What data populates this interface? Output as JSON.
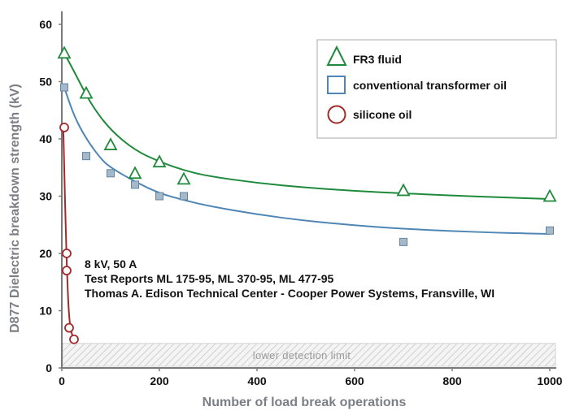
{
  "chart_data": {
    "type": "scatter",
    "xlabel": "Number of load break operations",
    "ylabel": "D877  Dielectric breakdown strength (kV)",
    "xlim": [
      0,
      1000
    ],
    "ylim": [
      0,
      60
    ],
    "x_ticks": [
      0,
      200,
      400,
      600,
      800,
      1000
    ],
    "y_ticks": [
      0,
      10,
      20,
      30,
      40,
      50,
      60
    ],
    "grid": false,
    "legend_position": "top-right",
    "series": [
      {
        "name": "FR3 fluid",
        "marker": "triangle",
        "color": "#1f8a3b",
        "points": [
          [
            5,
            55
          ],
          [
            50,
            48
          ],
          [
            100,
            39
          ],
          [
            150,
            34
          ],
          [
            200,
            36
          ],
          [
            250,
            33
          ],
          [
            700,
            31
          ],
          [
            1000,
            30
          ]
        ],
        "fit": [
          [
            5,
            55
          ],
          [
            30,
            51
          ],
          [
            60,
            46
          ],
          [
            100,
            41.5
          ],
          [
            150,
            38
          ],
          [
            200,
            36
          ],
          [
            250,
            34.5
          ],
          [
            300,
            33.5
          ],
          [
            400,
            32.3
          ],
          [
            500,
            31.5
          ],
          [
            600,
            30.9
          ],
          [
            700,
            30.5
          ],
          [
            800,
            30.1
          ],
          [
            900,
            29.8
          ],
          [
            1000,
            29.5
          ]
        ]
      },
      {
        "name": "conventional transformer oil",
        "marker": "square",
        "color": "#4f86b5",
        "points": [
          [
            5,
            49
          ],
          [
            50,
            37
          ],
          [
            100,
            34
          ],
          [
            150,
            32
          ],
          [
            200,
            30
          ],
          [
            250,
            30
          ],
          [
            700,
            22
          ],
          [
            1000,
            24
          ]
        ],
        "fit": [
          [
            5,
            49
          ],
          [
            25,
            44
          ],
          [
            50,
            40
          ],
          [
            80,
            36.5
          ],
          [
            100,
            35
          ],
          [
            150,
            32.5
          ],
          [
            200,
            30.5
          ],
          [
            250,
            29.3
          ],
          [
            300,
            28.3
          ],
          [
            400,
            26.8
          ],
          [
            500,
            25.7
          ],
          [
            600,
            24.9
          ],
          [
            700,
            24.3
          ],
          [
            800,
            23.9
          ],
          [
            900,
            23.6
          ],
          [
            1000,
            23.4
          ]
        ]
      },
      {
        "name": "silicone oil",
        "marker": "circle",
        "color": "#a32a2a",
        "points": [
          [
            5,
            42
          ],
          [
            10,
            20
          ],
          [
            10,
            17
          ],
          [
            15,
            7
          ],
          [
            25,
            5
          ]
        ],
        "fit": [
          [
            3,
            42
          ],
          [
            5,
            35
          ],
          [
            8,
            24
          ],
          [
            11,
            16
          ],
          [
            14,
            10
          ],
          [
            18,
            6.5
          ],
          [
            25,
            5
          ]
        ]
      }
    ],
    "annotation_lines": [
      "8 kV, 50 A",
      "Test Reports ML 175-95, ML 370-95, ML 477-95",
      "Thomas A. Edison Technical Center - Cooper Power Systems, Fransville, WI"
    ],
    "detection_limit": {
      "label": "lower detection limit",
      "range": [
        0,
        4
      ]
    }
  }
}
